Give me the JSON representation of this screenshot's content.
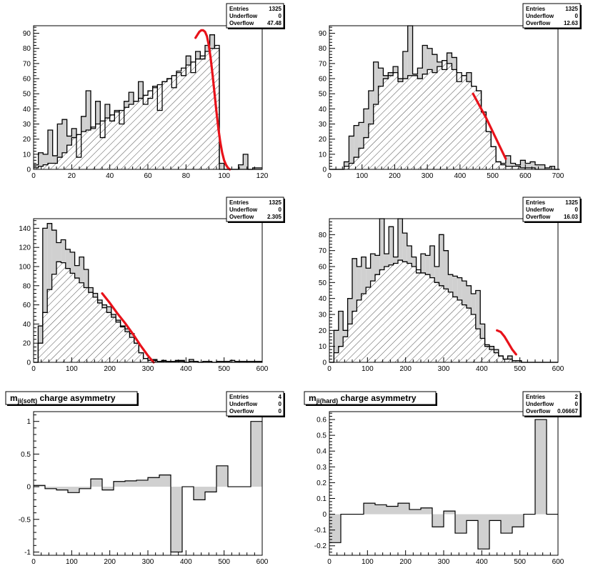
{
  "figure": {
    "description_none": ""
  },
  "chart_data": [
    {
      "type": "histogram",
      "id": "pad1",
      "xlim": [
        0,
        120
      ],
      "ylim": [
        0,
        95
      ],
      "xticks": [
        0,
        20,
        40,
        60,
        80,
        100,
        120
      ],
      "yticks": [
        0,
        10,
        20,
        30,
        40,
        50,
        60,
        70,
        80,
        90
      ],
      "stats": {
        "Entries": "1325",
        "Underflow": "0",
        "Overflow": "47.48"
      },
      "bin_width": 2.5,
      "series": [
        {
          "name": "filled",
          "values": [
            3,
            11,
            10,
            26,
            9,
            30,
            33,
            22,
            27,
            8,
            35,
            52,
            27,
            45,
            21,
            43,
            32,
            39,
            30,
            45,
            51,
            45,
            58,
            43,
            47,
            55,
            39,
            58,
            60,
            54,
            64,
            62,
            75,
            64,
            78,
            73,
            82,
            89,
            80,
            4,
            0,
            0,
            0,
            3,
            10,
            0,
            1,
            1
          ]
        },
        {
          "name": "hatched",
          "values": [
            1,
            2,
            3,
            4,
            4,
            8,
            11,
            16,
            21,
            23,
            25,
            26,
            28,
            30,
            32,
            34,
            36,
            38,
            39,
            41,
            43,
            45,
            47,
            49,
            52,
            54,
            56,
            58,
            60,
            62,
            65,
            67,
            69,
            71,
            73,
            75,
            78,
            80,
            82,
            0,
            0,
            0,
            0,
            0,
            0,
            0,
            0,
            0
          ]
        }
      ],
      "fit": {
        "x": [
          85,
          86,
          87,
          88,
          89,
          90,
          91,
          92,
          93,
          94,
          95,
          96,
          97,
          98,
          99,
          100,
          101,
          102,
          103
        ],
        "y": [
          87,
          89,
          91,
          92,
          92,
          91,
          88,
          82,
          73,
          62,
          50,
          38,
          27,
          18,
          11,
          6,
          3,
          1,
          0
        ]
      }
    },
    {
      "type": "histogram",
      "id": "pad2",
      "xlim": [
        0,
        700
      ],
      "ylim": [
        0,
        95
      ],
      "xticks": [
        0,
        100,
        200,
        300,
        400,
        500,
        600,
        700
      ],
      "yticks": [
        0,
        10,
        20,
        30,
        40,
        50,
        60,
        70,
        80,
        90
      ],
      "stats": {
        "Entries": "1325",
        "Underflow": "0",
        "Overflow": "12.63"
      },
      "bin_width": 15,
      "series": [
        {
          "name": "filled",
          "values": [
            0,
            0,
            0,
            5,
            22,
            29,
            31,
            40,
            52,
            71,
            67,
            62,
            64,
            68,
            60,
            78,
            97,
            63,
            67,
            82,
            80,
            76,
            71,
            66,
            77,
            74,
            58,
            62,
            64,
            55,
            52,
            38,
            25,
            15,
            5,
            4,
            9,
            4,
            3,
            6,
            4,
            5,
            3,
            3,
            1,
            2,
            0
          ]
        },
        {
          "name": "hatched",
          "values": [
            0,
            0,
            0,
            2,
            4,
            8,
            14,
            21,
            30,
            43,
            55,
            60,
            62,
            64,
            58,
            60,
            62,
            62,
            60,
            63,
            66,
            64,
            68,
            72,
            70,
            66,
            64,
            62,
            58,
            55,
            52,
            38,
            25,
            15,
            5,
            3,
            2,
            2,
            2,
            1,
            1,
            1,
            0,
            0,
            0,
            0,
            0
          ]
        }
      ],
      "fit": {
        "x": [
          440,
          460,
          480,
          500,
          520,
          540
        ],
        "y": [
          50,
          42,
          34,
          25,
          16,
          7
        ]
      }
    },
    {
      "type": "histogram",
      "id": "pad3",
      "xlim": [
        0,
        600
      ],
      "ylim": [
        0,
        150
      ],
      "xticks": [
        0,
        100,
        200,
        300,
        400,
        500,
        600
      ],
      "yticks": [
        0,
        20,
        40,
        60,
        80,
        100,
        120,
        140
      ],
      "stats": {
        "Entries": "1325",
        "Underflow": "0",
        "Overflow": "2.305"
      },
      "bin_width": 12,
      "series": [
        {
          "name": "filled",
          "values": [
            0,
            38,
            140,
            145,
            138,
            125,
            128,
            118,
            115,
            101,
            110,
            97,
            78,
            72,
            65,
            60,
            58,
            50,
            44,
            38,
            35,
            30,
            20,
            10,
            4,
            2,
            3,
            1,
            2,
            1,
            1,
            2,
            2,
            0,
            3,
            1,
            0,
            1,
            1,
            0,
            1,
            1,
            1,
            2,
            1,
            1,
            1,
            1,
            1,
            1
          ]
        },
        {
          "name": "hatched",
          "values": [
            0,
            20,
            52,
            76,
            92,
            105,
            104,
            98,
            93,
            88,
            83,
            78,
            73,
            68,
            62,
            57,
            52,
            47,
            42,
            37,
            32,
            26,
            20,
            10,
            4,
            2,
            2,
            1,
            1,
            1,
            1,
            1,
            1,
            0,
            1,
            1,
            0,
            0,
            0,
            0,
            0,
            0,
            0,
            0,
            0,
            0,
            0,
            0,
            0,
            0
          ]
        }
      ],
      "fit": {
        "x": [
          180,
          200,
          220,
          240,
          260,
          280,
          300,
          315
        ],
        "y": [
          72,
          62,
          51,
          41,
          30,
          18,
          7,
          0
        ]
      }
    },
    {
      "type": "histogram",
      "id": "pad4",
      "xlim": [
        0,
        600
      ],
      "ylim": [
        0,
        90
      ],
      "xticks": [
        0,
        100,
        200,
        300,
        400,
        500,
        600
      ],
      "yticks": [
        0,
        10,
        20,
        30,
        40,
        50,
        60,
        70,
        80
      ],
      "stats": {
        "Entries": "1325",
        "Underflow": "0",
        "Overflow": "16.03"
      },
      "bin_width": 12,
      "series": [
        {
          "name": "filled",
          "values": [
            0,
            20,
            32,
            20,
            40,
            65,
            60,
            66,
            59,
            68,
            67,
            92,
            68,
            85,
            66,
            92,
            81,
            73,
            66,
            56,
            68,
            67,
            73,
            60,
            80,
            70,
            55,
            54,
            53,
            51,
            48,
            43,
            45,
            24,
            10,
            10,
            8,
            4,
            2,
            4,
            1,
            1,
            0,
            0,
            0,
            0,
            0,
            0,
            0,
            0
          ]
        },
        {
          "name": "hatched",
          "values": [
            0,
            6,
            10,
            16,
            24,
            32,
            39,
            43,
            47,
            51,
            55,
            58,
            60,
            61,
            62,
            64,
            63,
            62,
            60,
            58,
            56,
            55,
            53,
            50,
            48,
            46,
            44,
            41,
            39,
            36,
            34,
            30,
            21,
            15,
            11,
            8,
            6,
            4,
            2,
            2,
            1,
            1,
            0,
            0,
            0,
            0,
            0,
            0,
            0,
            0
          ]
        }
      ],
      "fit": {
        "x": [
          440,
          450,
          460,
          470,
          480,
          490
        ],
        "y": [
          20,
          19,
          16,
          12,
          8,
          5
        ]
      }
    },
    {
      "type": "histogram",
      "id": "pad5",
      "title_main": "m",
      "title_sub": "ji(soft)",
      "title_rest": " charge asymmetry",
      "xlim": [
        0,
        600
      ],
      "ylim": [
        -1.05,
        1.15
      ],
      "xticks": [
        0,
        100,
        200,
        300,
        400,
        500,
        600
      ],
      "yticks": [
        -1,
        -0.5,
        0,
        0.5,
        1
      ],
      "stats": {
        "Entries": "4",
        "Underflow": "0",
        "Overflow": "0"
      },
      "bin_width": 30,
      "series": [
        {
          "name": "asymmetry",
          "values": [
            0.02,
            -0.03,
            -0.05,
            -0.09,
            -0.03,
            0.12,
            -0.05,
            0.08,
            0.09,
            0.1,
            0.14,
            0.18,
            -1.0,
            0.0,
            -0.2,
            -0.08,
            0.32,
            0.0,
            0.0,
            1.0
          ]
        }
      ]
    },
    {
      "type": "histogram",
      "id": "pad6",
      "title_main": "m",
      "title_sub": "ji(hard)",
      "title_rest": " charge asymmetry",
      "xlim": [
        0,
        600
      ],
      "ylim": [
        -0.26,
        0.65
      ],
      "xticks": [
        0,
        100,
        200,
        300,
        400,
        500,
        600
      ],
      "yticks": [
        -0.2,
        -0.1,
        0,
        0.1,
        0.2,
        0.3,
        0.4,
        0.5,
        0.6
      ],
      "stats": {
        "Entries": "2",
        "Underflow": "0",
        "Overflow": "0.06667"
      },
      "bin_width": 30,
      "series": [
        {
          "name": "asymmetry",
          "values": [
            -0.18,
            0.0,
            0.0,
            0.07,
            0.06,
            0.05,
            0.07,
            0.03,
            0.04,
            -0.08,
            0.02,
            -0.12,
            -0.04,
            -0.22,
            -0.04,
            -0.12,
            -0.08,
            0.0,
            0.6,
            0.0
          ]
        }
      ]
    }
  ]
}
